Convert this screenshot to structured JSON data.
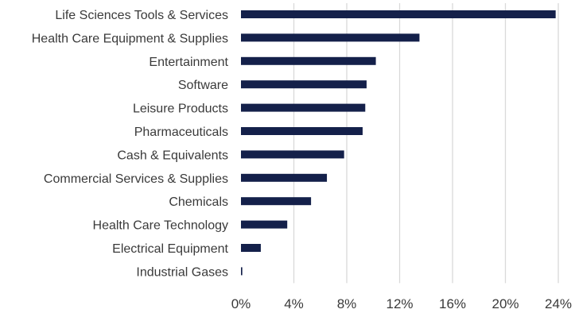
{
  "chart_data": {
    "type": "bar",
    "orientation": "horizontal",
    "categories": [
      "Life Sciences Tools & Services",
      "Health Care Equipment & Supplies",
      "Entertainment",
      "Software",
      "Leisure Products",
      "Pharmaceuticals",
      "Cash & Equivalents",
      "Commercial Services & Supplies",
      "Chemicals",
      "Health Care Technology",
      "Electrical Equipment",
      "Industrial Gases"
    ],
    "values": [
      23.8,
      13.5,
      10.2,
      9.5,
      9.4,
      9.2,
      7.8,
      6.5,
      5.3,
      3.5,
      1.5,
      0.1
    ],
    "xlim": [
      0,
      24
    ],
    "xticks": [
      0,
      4,
      8,
      12,
      16,
      20,
      24
    ],
    "xtick_labels": [
      "0%",
      "4%",
      "8%",
      "12%",
      "16%",
      "20%",
      "24%"
    ],
    "grid": "vertical",
    "colors": {
      "bar": "#14204a",
      "grid": "#d9d9d9",
      "text": "#3a3a3a"
    }
  }
}
